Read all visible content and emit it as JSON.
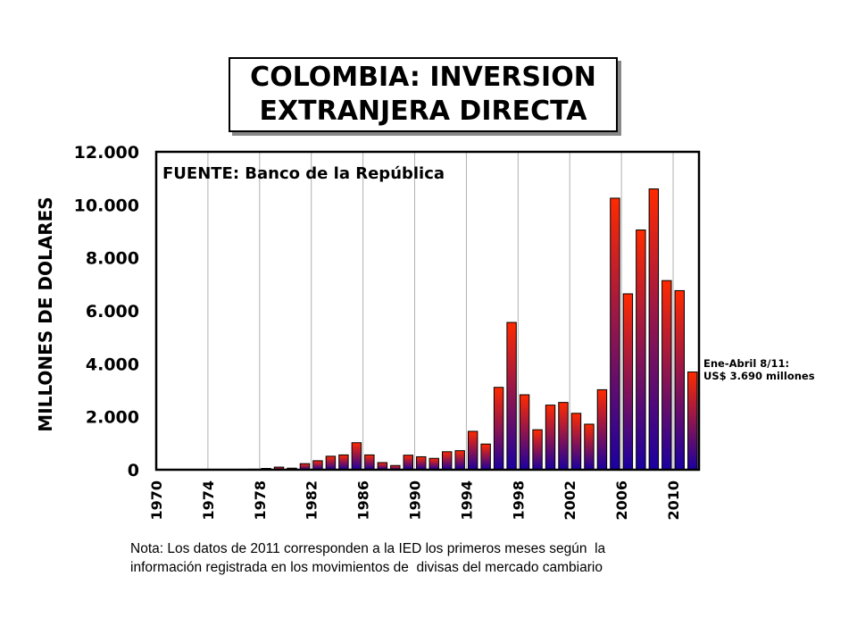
{
  "title": {
    "line1": "COLOMBIA: INVERSION",
    "line2": "EXTRANJERA DIRECTA"
  },
  "source": "FUENTE: Banco de la República",
  "annotation": {
    "line1": "Ene-Abril 8/11:",
    "line2": "US$ 3.690 millones"
  },
  "note": {
    "line1": "Nota: Los datos de 2011 corresponden a la IED los primeros meses según  la",
    "line2": "información registrada en los movimientos de  divisas del mercado cambiario"
  },
  "colors": {
    "bar_top": "#ff2a00",
    "bar_bottom": "#1a00a0",
    "grid": "#b0b0b0"
  },
  "chart_data": {
    "type": "bar",
    "title": "COLOMBIA: INVERSION EXTRANJERA DIRECTA",
    "xlabel": "",
    "ylabel": "MILLONES DE DOLARES",
    "ylim": [
      0,
      12000
    ],
    "yticks": [
      0,
      2000,
      4000,
      6000,
      8000,
      10000,
      12000
    ],
    "ytick_labels": [
      "0",
      "2.000",
      "4.000",
      "6.000",
      "8.000",
      "10.000",
      "12.000"
    ],
    "xtick_labels": [
      "1970",
      "1974",
      "1978",
      "1982",
      "1986",
      "1990",
      "1994",
      "1998",
      "2002",
      "2006",
      "2010"
    ],
    "grid": true,
    "categories": [
      1970,
      1971,
      1972,
      1973,
      1974,
      1975,
      1976,
      1977,
      1978,
      1979,
      1980,
      1981,
      1982,
      1983,
      1984,
      1985,
      1986,
      1987,
      1988,
      1989,
      1990,
      1991,
      1992,
      1993,
      1994,
      1995,
      1996,
      1997,
      1998,
      1999,
      2000,
      2001,
      2002,
      2003,
      2004,
      2005,
      2006,
      2007,
      2008,
      2009,
      2010,
      2011
    ],
    "values": [
      5,
      5,
      5,
      5,
      10,
      10,
      10,
      20,
      50,
      100,
      60,
      230,
      340,
      510,
      560,
      1020,
      560,
      270,
      160,
      550,
      490,
      430,
      680,
      720,
      1450,
      970,
      3110,
      5560,
      2830,
      1510,
      2440,
      2540,
      2130,
      1720,
      3020,
      10250,
      6640,
      9050,
      10600,
      7140,
      6760,
      3690
    ]
  }
}
